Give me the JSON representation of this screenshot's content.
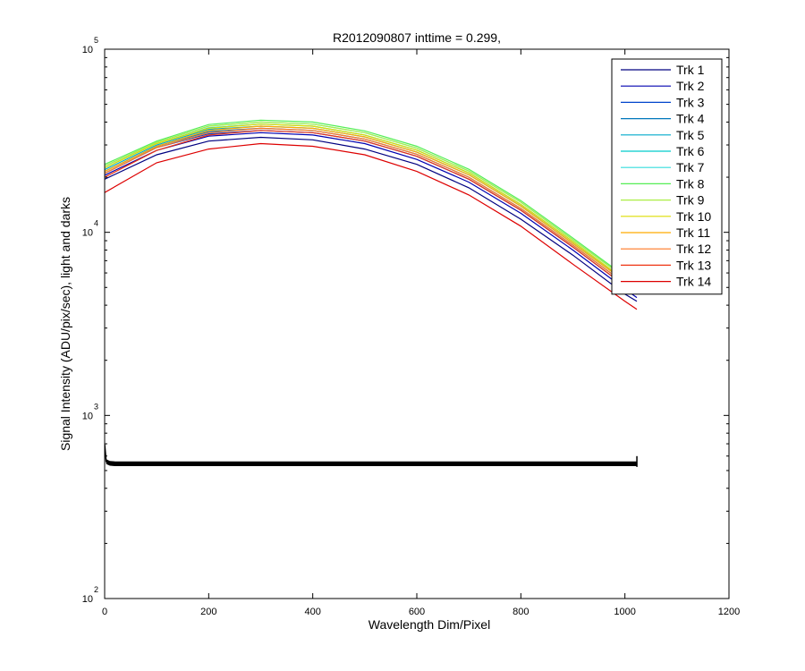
{
  "chart_data": {
    "type": "line",
    "title": "R2012090807 inttime = 0.299,",
    "xlabel": "Wavelength Dim/Pixel",
    "ylabel": "Signal Intensity (ADU/pix/sec), light and darks",
    "xlim": [
      0,
      1200
    ],
    "ylim": [
      100,
      100000
    ],
    "yscale": "log",
    "grid": false,
    "legend_position": "top-right",
    "x_ticks": [
      "0",
      "200",
      "400",
      "600",
      "800",
      "1000",
      "1200"
    ],
    "y_ticks": [
      {
        "value": 100,
        "base": "10",
        "exp": "2"
      },
      {
        "value": 1000,
        "base": "10",
        "exp": "3"
      },
      {
        "value": 10000,
        "base": "10",
        "exp": "4"
      },
      {
        "value": 100000,
        "base": "10",
        "exp": "5"
      }
    ],
    "x": [
      0,
      100,
      200,
      300,
      400,
      500,
      600,
      700,
      800,
      900,
      1000,
      1023
    ],
    "series": [
      {
        "name": "Trk 1",
        "color": "#000080",
        "values": [
          19500,
          26500,
          31500,
          33000,
          32000,
          28500,
          23500,
          17500,
          11800,
          7500,
          4600,
          4200
        ]
      },
      {
        "name": "Trk 2",
        "color": "#0000b0",
        "values": [
          20500,
          28000,
          33500,
          35000,
          34000,
          30500,
          25000,
          18800,
          12700,
          8000,
          4900,
          4400
        ]
      },
      {
        "name": "Trk 3",
        "color": "#0044cc",
        "values": [
          21000,
          29000,
          34500,
          36000,
          35000,
          31500,
          26000,
          19500,
          13200,
          8300,
          5100,
          4600
        ]
      },
      {
        "name": "Trk 4",
        "color": "#0077bb",
        "values": [
          21500,
          29500,
          35500,
          37000,
          36000,
          32300,
          26700,
          20000,
          13500,
          8500,
          5250,
          4750
        ]
      },
      {
        "name": "Trk 5",
        "color": "#00aacc",
        "values": [
          22000,
          30000,
          36500,
          38000,
          37000,
          33200,
          27400,
          20600,
          13900,
          8700,
          5400,
          4900
        ]
      },
      {
        "name": "Trk 6",
        "color": "#00cccc",
        "values": [
          22500,
          30500,
          37200,
          39000,
          38000,
          34000,
          28100,
          21100,
          14200,
          8900,
          5500,
          5000
        ]
      },
      {
        "name": "Trk 7",
        "color": "#33dddd",
        "values": [
          23000,
          31000,
          38000,
          40000,
          39000,
          35000,
          28800,
          21600,
          14600,
          9100,
          5650,
          5100
        ]
      },
      {
        "name": "Trk 8",
        "color": "#55ee55",
        "values": [
          23500,
          31500,
          38800,
          41000,
          40000,
          35800,
          29500,
          22100,
          14900,
          9300,
          5750,
          5200
        ]
      },
      {
        "name": "Trk 9",
        "color": "#aaee44",
        "values": [
          23000,
          31000,
          38000,
          40000,
          39000,
          35000,
          28800,
          21600,
          14600,
          9100,
          5650,
          5100
        ]
      },
      {
        "name": "Trk 10",
        "color": "#dddd00",
        "values": [
          22500,
          30500,
          37000,
          39000,
          38000,
          34000,
          28100,
          21100,
          14200,
          8900,
          5500,
          5000
        ]
      },
      {
        "name": "Trk 11",
        "color": "#ffaa00",
        "values": [
          21500,
          29500,
          36000,
          38000,
          37000,
          33200,
          27400,
          20600,
          13900,
          8700,
          5400,
          4900
        ]
      },
      {
        "name": "Trk 12",
        "color": "#ff7722",
        "values": [
          21000,
          29000,
          35000,
          37000,
          36000,
          32300,
          26700,
          20000,
          13500,
          8500,
          5250,
          4750
        ]
      },
      {
        "name": "Trk 13",
        "color": "#ee3311",
        "values": [
          20000,
          28000,
          34000,
          36000,
          35000,
          31500,
          26000,
          19500,
          13200,
          8300,
          5100,
          4600
        ]
      },
      {
        "name": "Trk 14",
        "color": "#dd0000",
        "values": [
          16500,
          24000,
          28500,
          30500,
          29500,
          26500,
          21500,
          16000,
          10800,
          6700,
          4200,
          3800
        ]
      }
    ],
    "darks": {
      "color": "#000000",
      "x": [
        0,
        3,
        10,
        20,
        1023
      ],
      "values": [
        700,
        560,
        548,
        545,
        545
      ]
    }
  }
}
